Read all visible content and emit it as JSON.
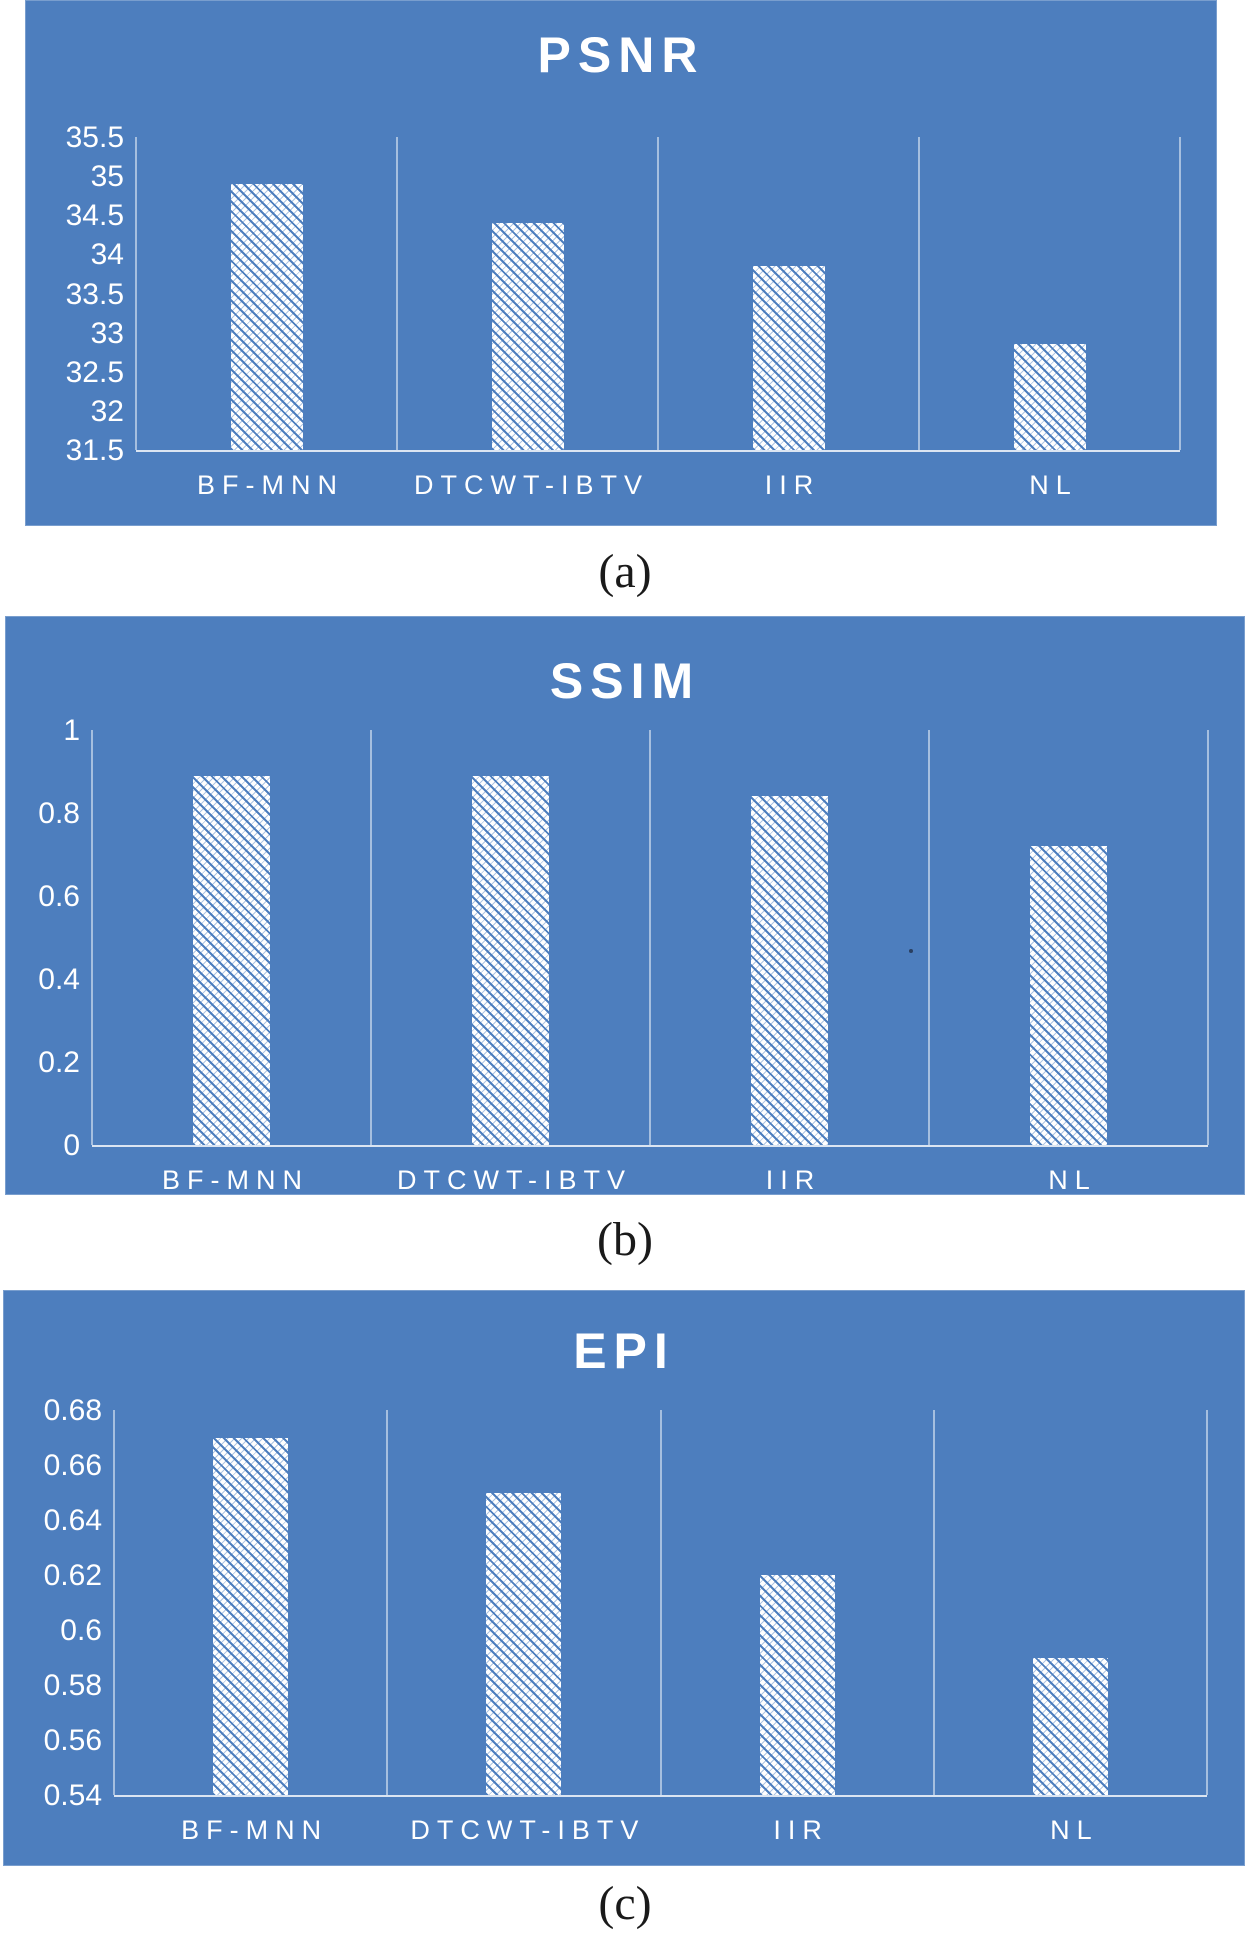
{
  "colors": {
    "panel_background": "#4d7ebe",
    "bar_fill": "#ffffff",
    "bar_hatch": "#4d7ebe",
    "gridline": "rgba(255,255,255,0.5)",
    "baseline": "rgba(255,255,255,0.8)",
    "axis_text": "#ffffff",
    "title_text": "#ffffff",
    "caption_text": "#1a1a1a"
  },
  "chart_data": [
    {
      "type": "bar",
      "title": "PSNR",
      "caption": "(a)",
      "categories": [
        "BF-MNN",
        "DTCWT-IBTV",
        "IIR",
        "NL"
      ],
      "values": [
        34.9,
        34.4,
        33.85,
        32.85
      ],
      "ylim": [
        31.5,
        35.5
      ],
      "tick_step": 0.5,
      "tick_labels": [
        "35.5",
        "35",
        "34.5",
        "34",
        "33.5",
        "33",
        "32.5",
        "32",
        "31.5"
      ],
      "xlabel": "",
      "ylabel": "",
      "grid": "vertical-category-lines",
      "legend": "none"
    },
    {
      "type": "bar",
      "title": "SSIM",
      "caption": "(b)",
      "categories": [
        "BF-MNN",
        "DTCWT-IBTV",
        "IIR",
        "NL"
      ],
      "values": [
        0.89,
        0.89,
        0.84,
        0.72
      ],
      "ylim": [
        0,
        1
      ],
      "tick_step": 0.2,
      "tick_labels": [
        "1",
        "0.8",
        "0.6",
        "0.4",
        "0.2",
        "0"
      ],
      "xlabel": "",
      "ylabel": "",
      "grid": "vertical-category-lines",
      "legend": "none"
    },
    {
      "type": "bar",
      "title": "EPI",
      "caption": "(c)",
      "categories": [
        "BF-MNN",
        "DTCWT-IBTV",
        "IIR",
        "NL"
      ],
      "values": [
        0.67,
        0.65,
        0.62,
        0.59
      ],
      "ylim": [
        0.54,
        0.68
      ],
      "tick_step": 0.02,
      "tick_labels": [
        "0.68",
        "0.66",
        "0.64",
        "0.62",
        "0.6",
        "0.58",
        "0.56",
        "0.54"
      ],
      "xlabel": "",
      "ylabel": "",
      "grid": "vertical-category-lines",
      "legend": "none"
    }
  ]
}
